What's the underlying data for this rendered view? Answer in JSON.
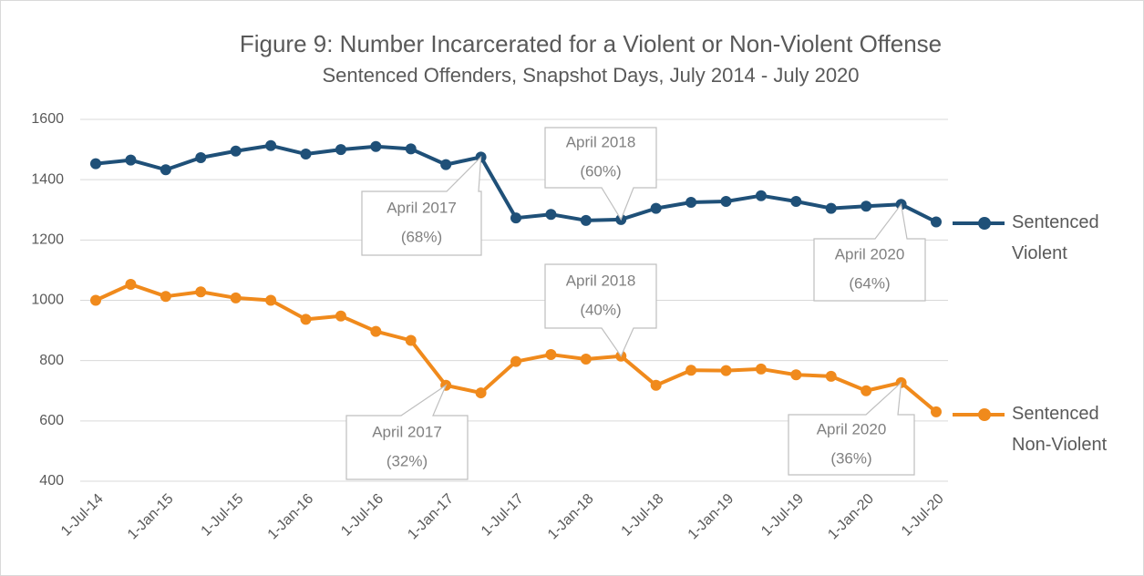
{
  "chart_data": {
    "type": "line",
    "title": "Figure 9: Number Incarcerated for a Violent or Non-Violent Offense",
    "subtitle": "Sentenced Offenders, Snapshot Days, July 2014 - July 2020",
    "categories": [
      "1-Jul-14",
      null,
      "1-Jan-15",
      null,
      "1-Jul-15",
      null,
      "1-Jan-16",
      null,
      "1-Jul-16",
      null,
      "1-Jan-17",
      null,
      "1-Jul-17",
      null,
      "1-Jan-18",
      null,
      "1-Jul-18",
      null,
      "1-Jan-19",
      null,
      "1-Jul-19",
      null,
      "1-Jan-20",
      null,
      "1-Jul-20"
    ],
    "series": [
      {
        "name": "Sentenced Violent",
        "color": "#1f5078",
        "values": [
          1453,
          1465,
          1433,
          1473,
          1495,
          1513,
          1485,
          1500,
          1510,
          1502,
          1450,
          1475,
          1273,
          1285,
          1265,
          1268,
          1305,
          1325,
          1328,
          1347,
          1328,
          1305,
          1312,
          1318,
          1260
        ]
      },
      {
        "name": "Sentenced Non-Violent",
        "color": "#f08a1c",
        "values": [
          1000,
          1053,
          1013,
          1028,
          1008,
          1000,
          937,
          948,
          897,
          867,
          718,
          693,
          797,
          820,
          805,
          815,
          718,
          768,
          767,
          772,
          753,
          748,
          700,
          727,
          630
        ]
      }
    ],
    "ylim": [
      400,
      1600
    ],
    "yticks": [
      400,
      600,
      800,
      1000,
      1200,
      1400,
      1600
    ],
    "grid": true,
    "legend": "right",
    "annotations": [
      {
        "lines": [
          "April 2017",
          "(68%)"
        ]
      },
      {
        "lines": [
          "April 2018",
          "(60%)"
        ]
      },
      {
        "lines": [
          "April 2020",
          "(64%)"
        ]
      },
      {
        "lines": [
          "April 2017",
          "(32%)"
        ]
      },
      {
        "lines": [
          "April 2018",
          "(40%)"
        ]
      },
      {
        "lines": [
          "April 2020",
          "(36%)"
        ]
      }
    ]
  }
}
